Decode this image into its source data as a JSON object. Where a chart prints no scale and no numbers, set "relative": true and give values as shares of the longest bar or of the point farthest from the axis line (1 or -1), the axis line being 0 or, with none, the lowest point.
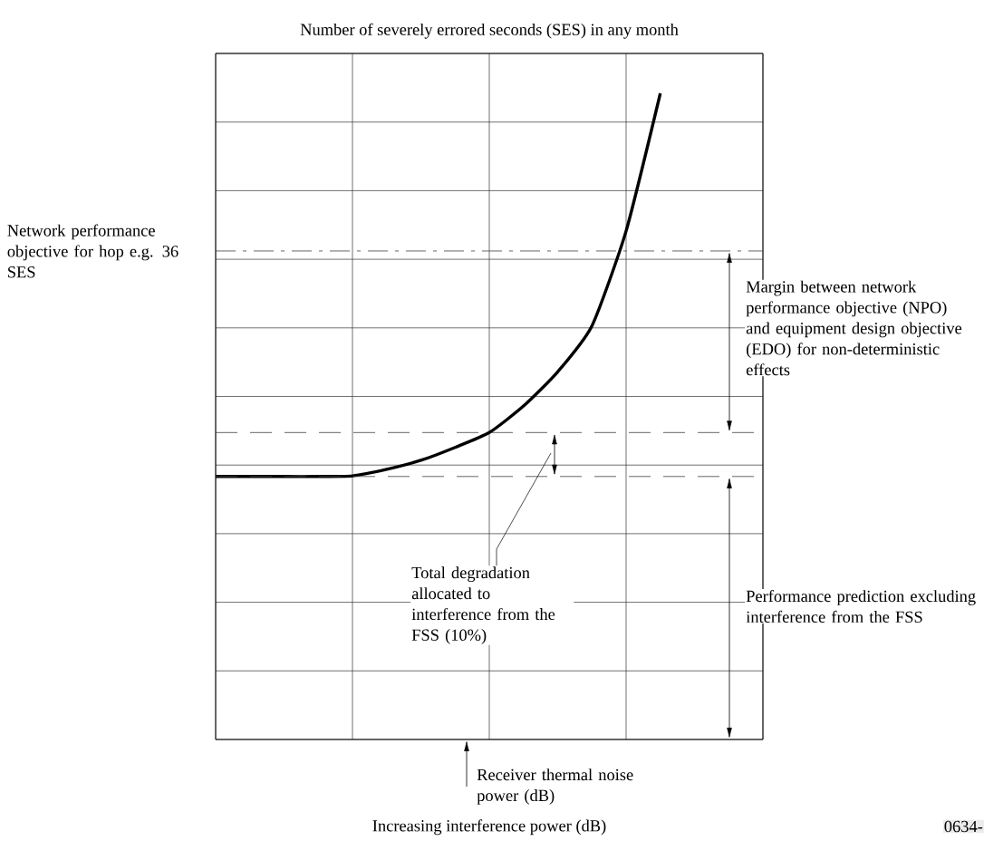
{
  "chart_data": {
    "type": "line",
    "relative": true,
    "grid": true,
    "ylabel": "Number of severely errored seconds (SES) in any month",
    "xlabel": "Increasing interference power (dB)",
    "categories": [
      null,
      null,
      null,
      null,
      null,
      null,
      null,
      null,
      null,
      null,
      null,
      null,
      null,
      null,
      null,
      null,
      null
    ],
    "values": [
      0.407,
      0.407,
      0.407,
      0.407,
      0.408,
      0.418,
      0.432,
      0.452,
      0.475,
      0.516,
      0.569,
      0.64,
      0.787,
      1,
      null,
      null,
      null
    ],
    "color": "#000000",
    "ref_lines": [
      {
        "axis": "y",
        "value": 0.756,
        "label": "Network performance objective for hop e.g. 36 SES",
        "line_style": "dashdot"
      },
      {
        "axis": "y",
        "value": 0.475,
        "line_style": "dashed"
      },
      {
        "axis": "y",
        "value": 0.407,
        "line_style": "dashed"
      }
    ],
    "annotations": [
      "Margin between network performance objective (NPO) and equipment design objective (EDO) for non-deterministic effects",
      "Total degradation allocated to interference from the FSS (10%)",
      "Performance prediction excluding interference from the FSS",
      "Receiver thermal noise power (dB)",
      "0634-"
    ]
  }
}
